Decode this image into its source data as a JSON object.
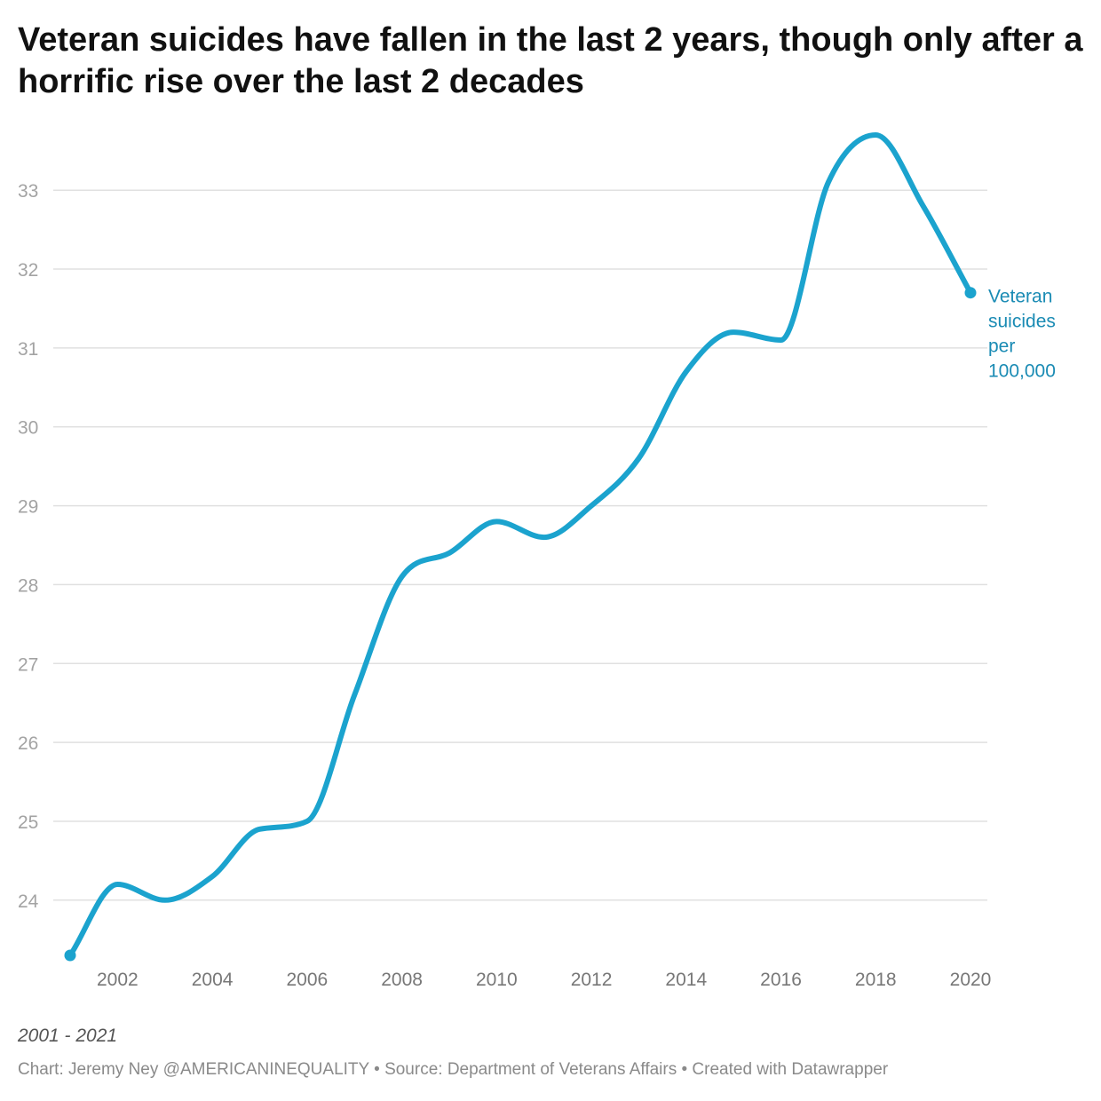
{
  "chart_data": {
    "type": "line",
    "title": "Veteran suicides have fallen in the last 2 years, though only after a horrific rise over the last 2 decades",
    "notes": "2001 - 2021",
    "footer": "Chart: Jeremy Ney @AMERICANINEQUALITY • Source: Department of Veterans Affairs • Created with Datawrapper",
    "x": [
      2001,
      2002,
      2003,
      2004,
      2005,
      2006,
      2007,
      2008,
      2009,
      2010,
      2011,
      2012,
      2013,
      2014,
      2015,
      2016,
      2017,
      2018,
      2019,
      2020
    ],
    "series": [
      {
        "name": "Veteran suicides per 100,000",
        "label_lines": [
          "Veteran",
          "suicides",
          "per",
          "100,000"
        ],
        "values": [
          23.3,
          24.2,
          24.0,
          24.3,
          24.9,
          25.0,
          26.6,
          28.1,
          28.4,
          28.8,
          28.6,
          29.0,
          29.6,
          30.7,
          31.2,
          31.1,
          33.1,
          33.7,
          32.8,
          31.7
        ],
        "color": "#1ba3ce",
        "label_color": "#1a8bb4"
      }
    ],
    "x_ticks": [
      "2002",
      "2004",
      "2006",
      "2008",
      "2010",
      "2012",
      "2014",
      "2016",
      "2018",
      "2020"
    ],
    "y_ticks": [
      "24",
      "25",
      "26",
      "27",
      "28",
      "29",
      "30",
      "31",
      "32",
      "33"
    ],
    "ylim": [
      23.3,
      33.7
    ],
    "xlim": [
      2001,
      2020
    ],
    "grid": true,
    "legend": "direct label at line end"
  }
}
